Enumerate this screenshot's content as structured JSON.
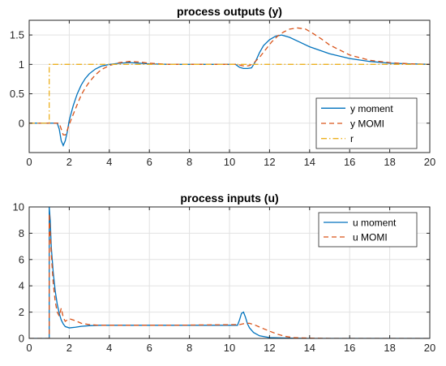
{
  "chart_data": [
    {
      "type": "line",
      "title": "process outputs (y)",
      "xlim": [
        0,
        20
      ],
      "ylim": [
        -0.5,
        1.75
      ],
      "xticks": [
        0,
        2,
        4,
        6,
        8,
        10,
        12,
        14,
        16,
        18,
        20
      ],
      "yticks": [
        0,
        0.5,
        1,
        1.5
      ],
      "ytick_labels": [
        "0",
        "0.5",
        "1",
        "1.5"
      ],
      "grid": true,
      "legend": "bottom-right",
      "series": [
        {
          "name": "y moment",
          "color": "#0072bd",
          "dash": "solid",
          "x": [
            0,
            1.4,
            1.5,
            1.6,
            1.7,
            1.8,
            1.9,
            2.0,
            2.2,
            2.4,
            2.6,
            2.8,
            3.0,
            3.3,
            3.6,
            4.0,
            4.5,
            5.0,
            5.5,
            6.0,
            7.0,
            8.0,
            9.0,
            10.3,
            10.5,
            10.7,
            10.9,
            11.1,
            11.3,
            11.5,
            11.7,
            12.0,
            12.3,
            12.6,
            13.0,
            13.5,
            14.0,
            15.0,
            16.0,
            17.0,
            18.0,
            19.0,
            20.0
          ],
          "y": [
            0,
            0,
            -0.1,
            -0.3,
            -0.38,
            -0.3,
            -0.15,
            0.05,
            0.3,
            0.5,
            0.65,
            0.76,
            0.84,
            0.92,
            0.97,
            1.0,
            1.02,
            1.03,
            1.02,
            1.01,
            1.0,
            1.0,
            1.0,
            1.0,
            0.95,
            0.93,
            0.93,
            0.94,
            1.05,
            1.2,
            1.32,
            1.42,
            1.48,
            1.5,
            1.46,
            1.38,
            1.3,
            1.18,
            1.1,
            1.05,
            1.02,
            1.01,
            1.0
          ]
        },
        {
          "name": "y MOMI",
          "color": "#d95319",
          "dash": "dashed",
          "x": [
            0,
            1.5,
            1.6,
            1.7,
            1.8,
            1.9,
            2.0,
            2.2,
            2.4,
            2.6,
            2.8,
            3.0,
            3.3,
            3.6,
            4.0,
            4.5,
            5.0,
            5.5,
            6.0,
            7.0,
            8.0,
            9.0,
            10.4,
            10.6,
            10.8,
            11.0,
            11.2,
            11.5,
            11.8,
            12.1,
            12.4,
            12.7,
            13.0,
            13.4,
            13.8,
            14.2,
            14.6,
            15.0,
            16.0,
            17.0,
            18.0,
            19.0,
            20.0
          ],
          "y": [
            0,
            0,
            -0.1,
            -0.2,
            -0.2,
            -0.12,
            -0.02,
            0.15,
            0.32,
            0.48,
            0.6,
            0.7,
            0.82,
            0.91,
            0.98,
            1.03,
            1.05,
            1.04,
            1.02,
            1.0,
            1.0,
            1.0,
            1.0,
            0.98,
            0.97,
            0.98,
            1.02,
            1.12,
            1.25,
            1.38,
            1.48,
            1.55,
            1.6,
            1.62,
            1.6,
            1.52,
            1.43,
            1.33,
            1.16,
            1.07,
            1.03,
            1.01,
            1.0
          ]
        },
        {
          "name": "r",
          "color": "#edb120",
          "dash": "dashdot",
          "x": [
            0,
            1,
            1,
            20
          ],
          "y": [
            0,
            0,
            1,
            1
          ]
        }
      ]
    },
    {
      "type": "line",
      "title": "process inputs (u)",
      "xlim": [
        0,
        20
      ],
      "ylim": [
        0,
        10
      ],
      "xticks": [
        0,
        2,
        4,
        6,
        8,
        10,
        12,
        14,
        16,
        18,
        20
      ],
      "yticks": [
        0,
        2,
        4,
        6,
        8,
        10
      ],
      "ytick_labels": [
        "0",
        "2",
        "4",
        "6",
        "8",
        "10"
      ],
      "grid": true,
      "legend": "top-right",
      "series": [
        {
          "name": "u moment",
          "color": "#0072bd",
          "dash": "solid",
          "x": [
            0,
            1.0,
            1.0,
            1.05,
            1.1,
            1.2,
            1.3,
            1.4,
            1.5,
            1.6,
            1.7,
            1.8,
            2.0,
            2.3,
            2.6,
            3.0,
            3.5,
            4.0,
            5.0,
            7.0,
            10.4,
            10.5,
            10.6,
            10.7,
            10.8,
            10.9,
            11.0,
            11.2,
            11.5,
            12.0,
            13.0,
            14.0,
            16.0,
            20.0
          ],
          "y": [
            0,
            0,
            10,
            9,
            7,
            5,
            3.6,
            2.6,
            1.9,
            1.4,
            1.1,
            0.9,
            0.8,
            0.85,
            0.92,
            0.97,
            1.0,
            1.0,
            1.0,
            1.0,
            1.0,
            1.4,
            1.9,
            2.0,
            1.6,
            1.1,
            0.8,
            0.45,
            0.2,
            0.06,
            0.02,
            0.0,
            0.0,
            0.0
          ]
        },
        {
          "name": "u MOMI",
          "color": "#d95319",
          "dash": "dashed",
          "x": [
            0,
            1.0,
            1.0,
            1.1,
            1.2,
            1.3,
            1.4,
            1.5,
            1.6,
            1.7,
            1.8,
            2.0,
            2.3,
            2.6,
            3.0,
            3.5,
            4.0,
            5.0,
            7.0,
            10.5,
            10.8,
            11.0,
            11.3,
            11.6,
            12.0,
            12.4,
            12.8,
            13.2,
            14.0,
            15.0,
            20.0
          ],
          "y": [
            0,
            0,
            9.5,
            6.5,
            4.2,
            2.8,
            2.0,
            1.7,
            2.3,
            1.6,
            1.3,
            1.5,
            1.35,
            1.15,
            1.05,
            1.0,
            1.0,
            1.0,
            1.0,
            1.05,
            1.15,
            1.15,
            1.0,
            0.8,
            0.55,
            0.32,
            0.15,
            0.06,
            0.02,
            0.0,
            0.0
          ]
        }
      ]
    }
  ]
}
